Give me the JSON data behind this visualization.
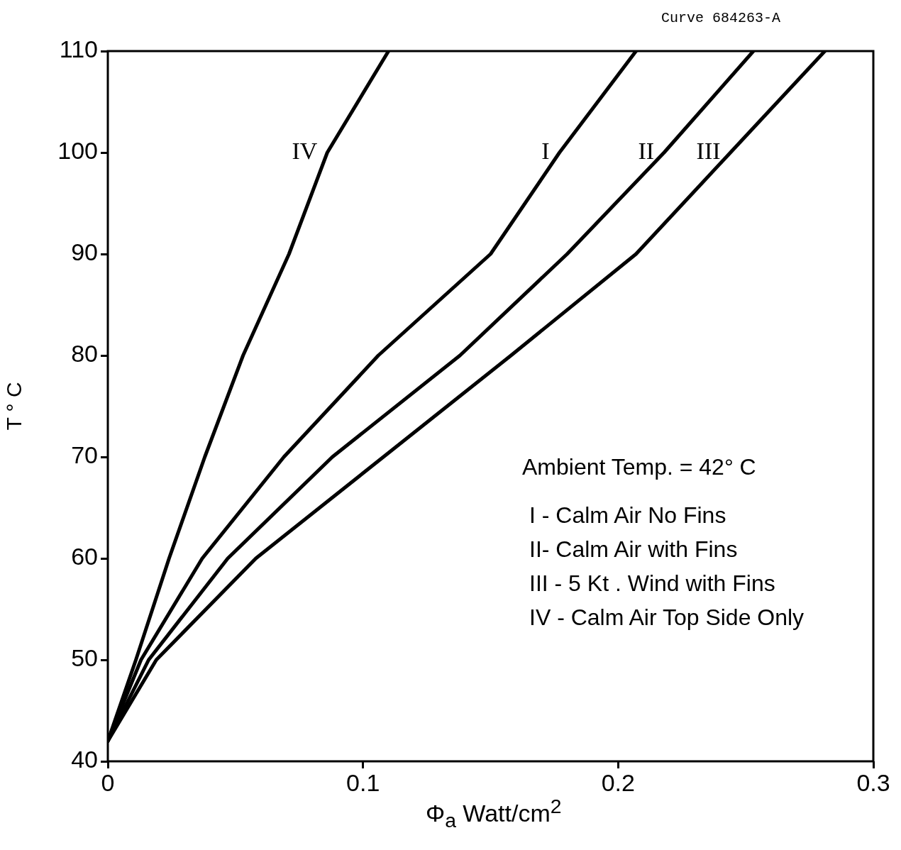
{
  "chart_data": {
    "type": "line",
    "xlabel": "Φ$_{a}$ Watt/cm$^{2}$",
    "ylabel": "T ° C",
    "annotations": [
      "Curve 684263-A",
      "Ambient Temp. = 42° C",
      "I - Calm Air  No Fins",
      "II- Calm Air with Fins",
      "III - 5 Kt . Wind with Fins",
      "IV - Calm Air Top Side Only"
    ],
    "series": [
      {
        "name": "IV",
        "color": "#000000",
        "x": [
          0,
          0.011,
          0.024,
          0.038,
          0.053,
          0.071,
          0.086,
          0.11
        ],
        "values": [
          42,
          50,
          60,
          70,
          80,
          90,
          100,
          110
        ]
      },
      {
        "name": "I",
        "color": "#000000",
        "x": [
          0,
          0.013,
          0.037,
          0.069,
          0.106,
          0.15,
          0.177,
          0.207
        ],
        "values": [
          42,
          50,
          60,
          70,
          80,
          90,
          100,
          110
        ]
      },
      {
        "name": "II",
        "color": "#000000",
        "x": [
          0,
          0.016,
          0.047,
          0.088,
          0.138,
          0.18,
          0.218,
          0.253
        ],
        "values": [
          42,
          50,
          60,
          70,
          80,
          90,
          100,
          110
        ]
      },
      {
        "name": "III",
        "color": "#000000",
        "x": [
          0,
          0.019,
          0.058,
          0.108,
          0.158,
          0.207,
          0.244,
          0.281
        ],
        "values": [
          42,
          50,
          60,
          70,
          80,
          90,
          100,
          110
        ]
      }
    ],
    "xlim": [
      0,
      0.3
    ],
    "xticks": [
      0,
      {
        "value": 0.1,
        "label": "0.1"
      },
      {
        "value": 0.2,
        "label": "0.2"
      },
      {
        "value": 0.3,
        "label": "0.3"
      }
    ],
    "ylim": [
      40,
      110
    ],
    "yticks": [
      40,
      50,
      60,
      70,
      80,
      90,
      100,
      110
    ],
    "grid": false,
    "legend": false,
    "marker": "none",
    "line_style": "solid"
  }
}
